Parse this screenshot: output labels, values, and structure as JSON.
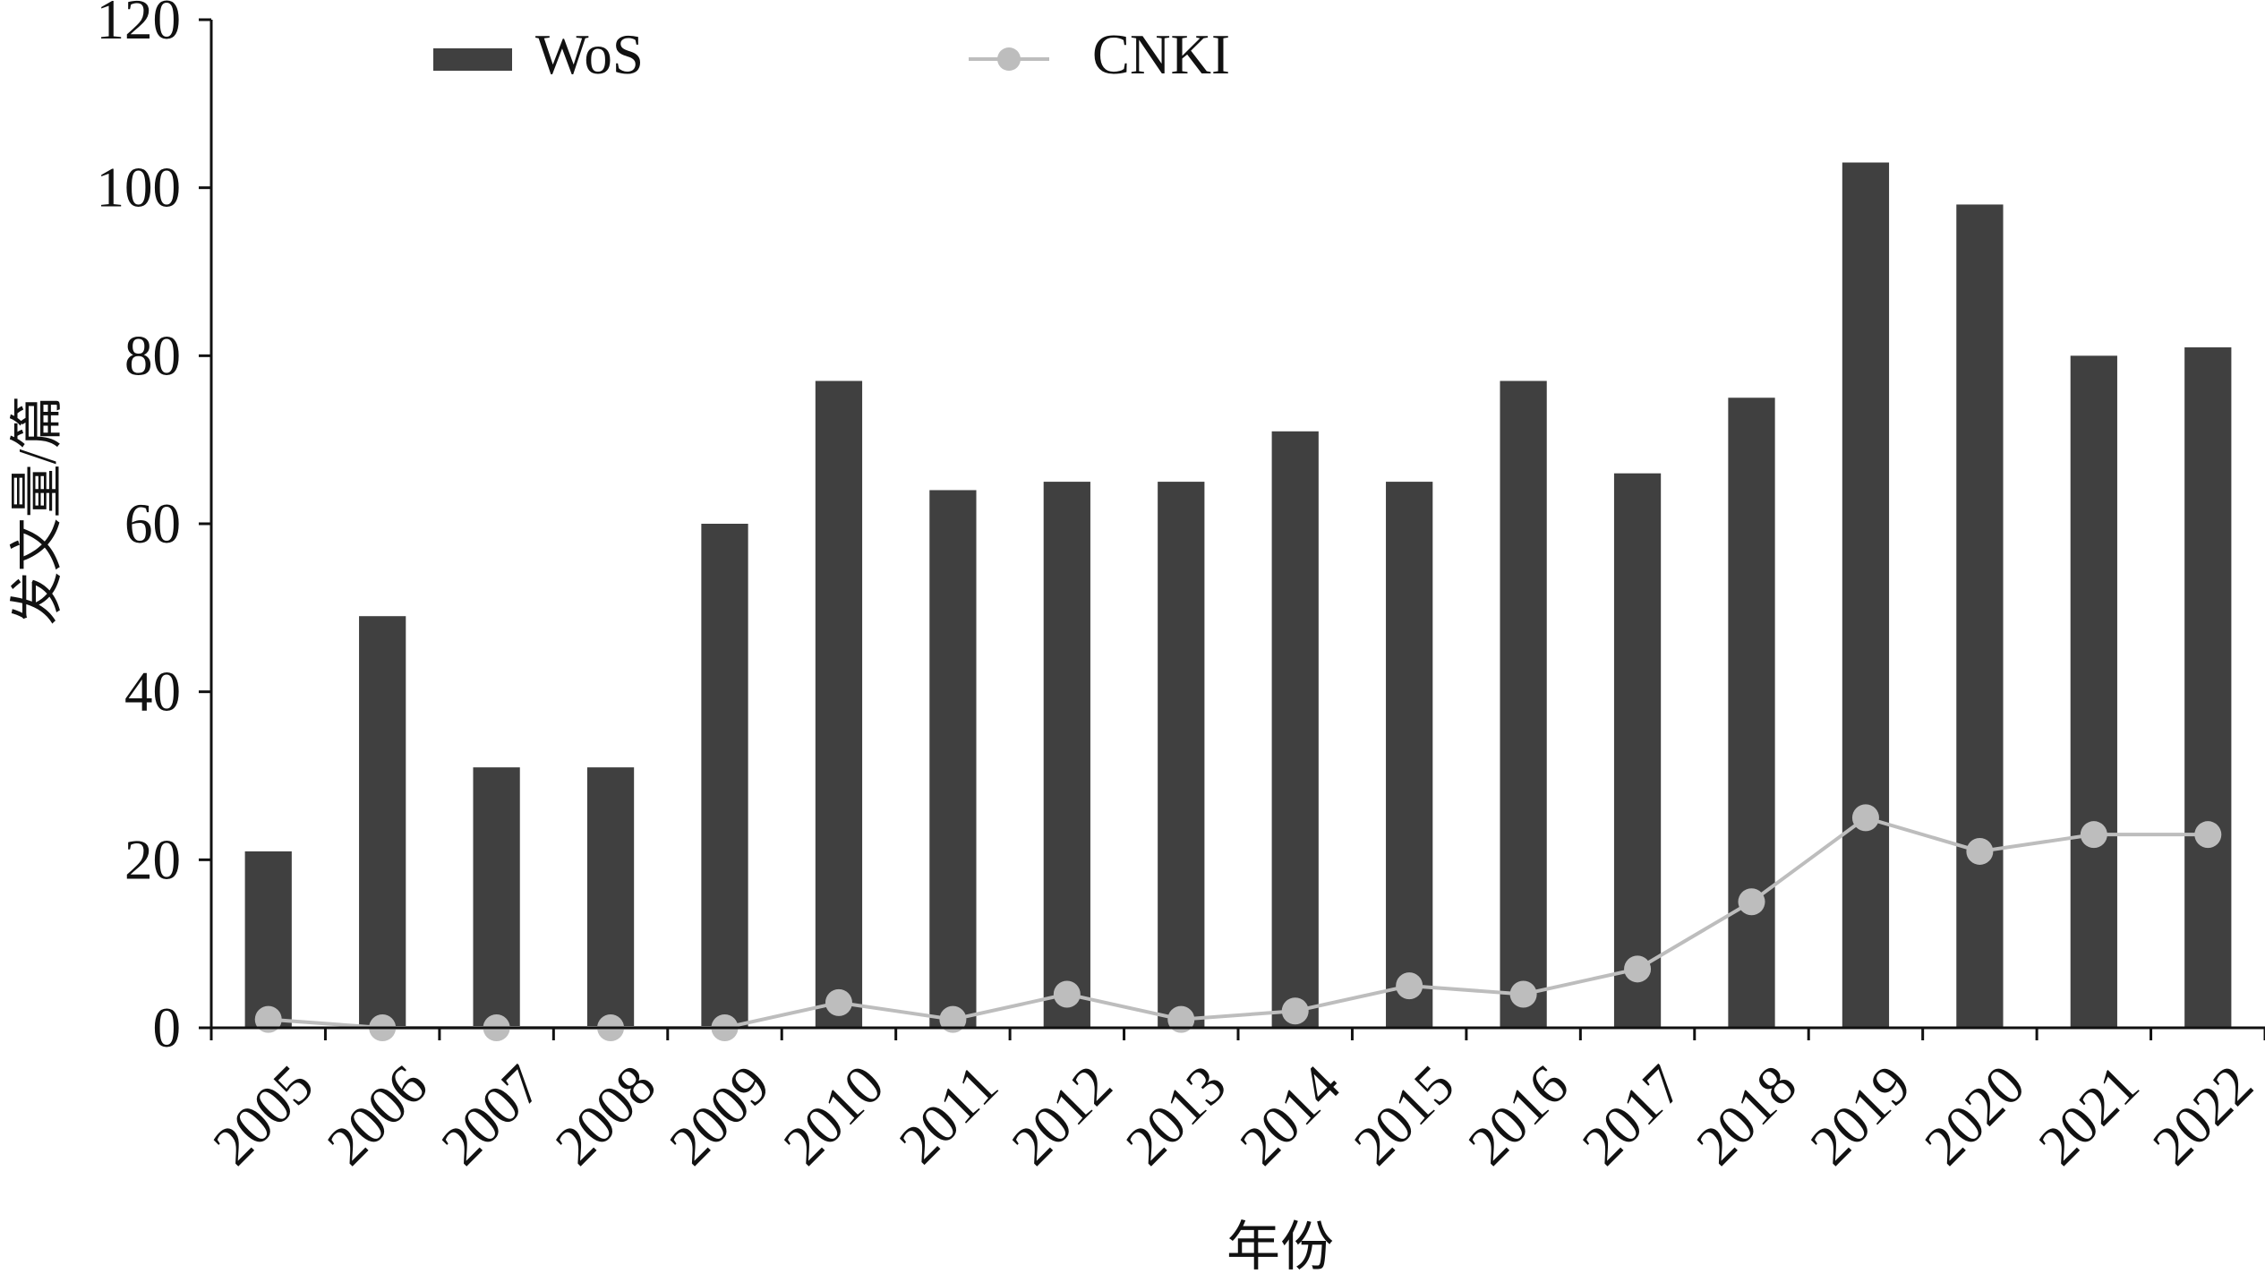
{
  "chart_data": {
    "type": "bar",
    "title": "",
    "xlabel": "年份",
    "ylabel": "发文量/篇",
    "ylim": [
      0,
      120
    ],
    "yticks": [
      "0",
      "20",
      "40",
      "60",
      "80",
      "100",
      "120"
    ],
    "categories": [
      "2005",
      "2006",
      "2007",
      "2008",
      "2009",
      "2010",
      "2011",
      "2012",
      "2013",
      "2014",
      "2015",
      "2016",
      "2017",
      "2018",
      "2019",
      "2020",
      "2021",
      "2022"
    ],
    "series": [
      {
        "name": "WoS",
        "type": "bar",
        "color": "#404040",
        "values": [
          21,
          49,
          31,
          31,
          60,
          77,
          64,
          65,
          65,
          71,
          65,
          77,
          66,
          75,
          103,
          98,
          80,
          81
        ]
      },
      {
        "name": "CNKI",
        "type": "line",
        "color": "#bdbdbd",
        "values": [
          1,
          0,
          0,
          0,
          0,
          3,
          1,
          4,
          1,
          2,
          5,
          4,
          7,
          15,
          25,
          21,
          23,
          23
        ]
      }
    ],
    "legend": "top-left",
    "grid": false
  }
}
